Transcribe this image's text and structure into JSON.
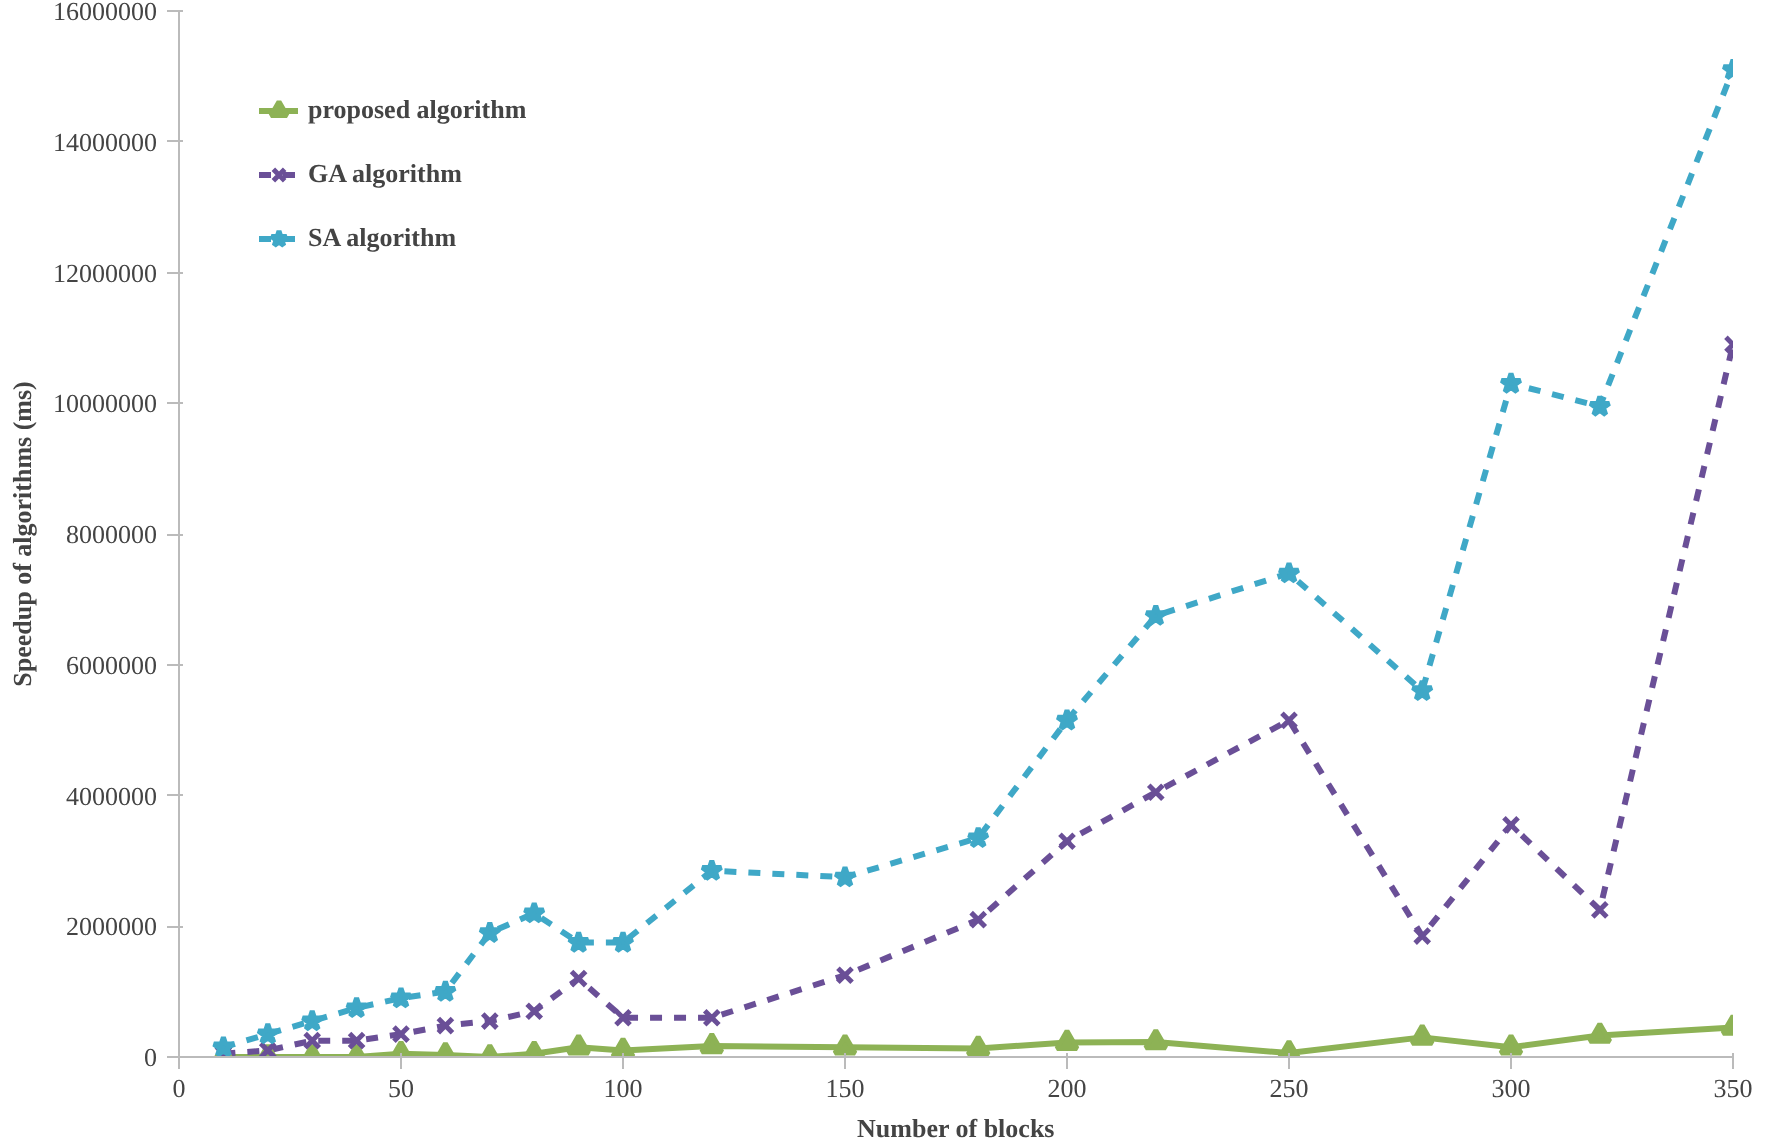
{
  "chart_data": {
    "type": "line",
    "xlabel": "Number of blocks",
    "ylabel": "Speedup of algorithms (ms)",
    "x": [
      10,
      20,
      30,
      40,
      50,
      60,
      70,
      80,
      90,
      100,
      120,
      150,
      180,
      200,
      220,
      250,
      280,
      300,
      320,
      350
    ],
    "series": [
      {
        "name": "proposed algorithm",
        "color": "#8db255",
        "marker": "triangle",
        "line_style": "solid",
        "values": [
          0,
          0,
          0,
          0,
          50000,
          30000,
          0,
          50000,
          150000,
          100000,
          170000,
          150000,
          130000,
          220000,
          230000,
          60000,
          300000,
          150000,
          330000,
          450000
        ]
      },
      {
        "name": "GA algorithm",
        "color": "#6a4f97",
        "marker": "cross",
        "line_style": "dashed",
        "values": [
          50000,
          100000,
          250000,
          250000,
          350000,
          480000,
          550000,
          700000,
          1200000,
          600000,
          600000,
          1250000,
          2100000,
          3300000,
          4050000,
          5150000,
          1850000,
          3550000,
          2250000,
          10900000
        ]
      },
      {
        "name": "SA algorithm",
        "color": "#3fa8c7",
        "marker": "star",
        "line_style": "dashed",
        "values": [
          150000,
          350000,
          550000,
          750000,
          900000,
          1000000,
          1900000,
          2200000,
          1750000,
          1750000,
          2850000,
          2750000,
          3350000,
          5150000,
          6750000,
          7400000,
          5600000,
          10300000,
          9950000,
          15100000
        ]
      }
    ],
    "xlim": [
      0,
      350
    ],
    "xticks": [
      0,
      50,
      100,
      150,
      200,
      250,
      300,
      350
    ],
    "ylim": [
      0,
      16000000
    ],
    "yticks": [
      0,
      2000000,
      4000000,
      6000000,
      8000000,
      10000000,
      12000000,
      14000000,
      16000000
    ],
    "grid": false,
    "legend": "top left"
  }
}
